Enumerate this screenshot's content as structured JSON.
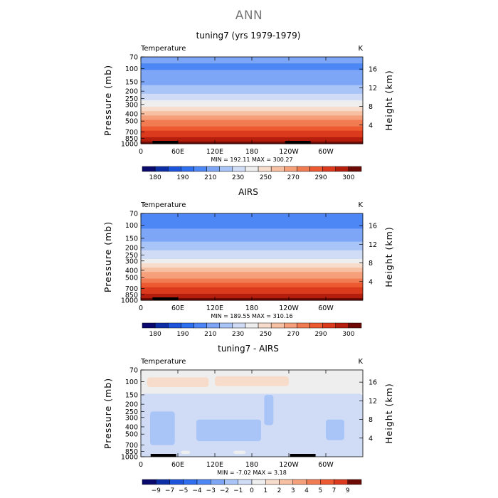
{
  "title": "ANN",
  "chart_data": [
    {
      "type": "heatmap",
      "title": "tuning7 (yrs 1979-1979)",
      "variable": "Temperature",
      "units": "K",
      "ylabel": "Pressure (mb)",
      "ylabel_right": "Height (km)",
      "xticks": [
        "0",
        "60E",
        "120E",
        "180",
        "120W",
        "60W"
      ],
      "yticks": [
        "70",
        "100",
        "150",
        "200",
        "250",
        "300",
        "400",
        "500",
        "700",
        "850",
        "1000"
      ],
      "yticks_right": [
        "16",
        "12",
        "8",
        "4"
      ],
      "stats": "MIN = 192.11   MAX = 300.27",
      "colorbar_labels": [
        "180",
        "190",
        "210",
        "230",
        "250",
        "270",
        "290",
        "300"
      ],
      "colorbar_colors": [
        "#0a0a6e",
        "#0c2fa8",
        "#1c54dc",
        "#2e6ff0",
        "#4d86f5",
        "#7ea6f7",
        "#a9c4f7",
        "#d0dcf5",
        "#eeeeee",
        "#f7dccc",
        "#f7c0a2",
        "#f5a07a",
        "#f27c52",
        "#ed5a32",
        "#dc3a1c",
        "#b51e0c",
        "#6e0a05"
      ],
      "colorbar_start": 170,
      "colorbar_step": 10,
      "profile_K": [
        [
          70,
          207
        ],
        [
          100,
          205
        ],
        [
          150,
          212
        ],
        [
          200,
          219
        ],
        [
          250,
          227
        ],
        [
          300,
          235
        ],
        [
          400,
          251
        ],
        [
          500,
          263
        ],
        [
          700,
          280
        ],
        [
          850,
          289
        ],
        [
          1000,
          299
        ]
      ],
      "land": [
        {
          "lon": 35,
          "pres": 920,
          "height": 12
        },
        {
          "lon": 250,
          "pres": 960,
          "height": 6
        }
      ]
    },
    {
      "type": "heatmap",
      "title": "AIRS",
      "variable": "Temperature",
      "units": "K",
      "ylabel": "Pressure (mb)",
      "ylabel_right": "Height (km)",
      "xticks": [
        "0",
        "60E",
        "120E",
        "180",
        "120W",
        "60W"
      ],
      "yticks": [
        "70",
        "100",
        "150",
        "200",
        "250",
        "300",
        "400",
        "500",
        "700",
        "850",
        "1000"
      ],
      "yticks_right": [
        "16",
        "12",
        "8",
        "4"
      ],
      "stats": "MIN = 189.55   MAX = 310.16",
      "colorbar_labels": [
        "180",
        "190",
        "210",
        "230",
        "250",
        "270",
        "290",
        "300"
      ],
      "colorbar_colors": [
        "#0a0a6e",
        "#0c2fa8",
        "#1c54dc",
        "#2e6ff0",
        "#4d86f5",
        "#7ea6f7",
        "#a9c4f7",
        "#d0dcf5",
        "#eeeeee",
        "#f7dccc",
        "#f7c0a2",
        "#f5a07a",
        "#f27c52",
        "#ed5a32",
        "#dc3a1c",
        "#b51e0c",
        "#6e0a05"
      ],
      "colorbar_start": 170,
      "colorbar_step": 10,
      "profile_K": [
        [
          70,
          206
        ],
        [
          100,
          204
        ],
        [
          150,
          211
        ],
        [
          200,
          218
        ],
        [
          250,
          226
        ],
        [
          300,
          234
        ],
        [
          400,
          250
        ],
        [
          500,
          262
        ],
        [
          700,
          279
        ],
        [
          850,
          289
        ],
        [
          1000,
          300
        ]
      ],
      "land": [
        {
          "lon": 35,
          "pres": 950,
          "height": 6
        }
      ]
    },
    {
      "type": "heatmap",
      "title": "tuning7 - AIRS",
      "variable": "Temperature",
      "units": "K",
      "ylabel": "Pressure (mb)",
      "ylabel_right": "Height (km)",
      "xticks": [
        "0",
        "60E",
        "120E",
        "180",
        "120W",
        "60W"
      ],
      "yticks": [
        "70",
        "100",
        "150",
        "200",
        "250",
        "300",
        "400",
        "500",
        "700",
        "850",
        "1000"
      ],
      "yticks_right": [
        "16",
        "12",
        "8",
        "4"
      ],
      "stats": "MIN =  -7.02   MAX =   3.18",
      "colorbar_labels": [
        "−9",
        "−7",
        "−5",
        "−4",
        "−3",
        "−2",
        "−1",
        "0",
        "1",
        "2",
        "3",
        "4",
        "5",
        "7",
        "9"
      ],
      "colorbar_colors": [
        "#0a0a6e",
        "#0c2fa8",
        "#1c54dc",
        "#2e6ff0",
        "#4d86f5",
        "#7ea6f7",
        "#a9c4f7",
        "#d0dcf5",
        "#eeeeee",
        "#f7dccc",
        "#f7c0a2",
        "#f5a07a",
        "#f27c52",
        "#ed5a32",
        "#dc3a1c",
        "#6e0a05"
      ],
      "diff_regions": [
        {
          "lon0": 0,
          "lon1": 360,
          "p0": 70,
          "p1": 145,
          "value": 0.5
        },
        {
          "lon0": 10,
          "lon1": 110,
          "p0": 88,
          "p1": 118,
          "value": 1.5
        },
        {
          "lon0": 120,
          "lon1": 240,
          "p0": 85,
          "p1": 115,
          "value": 1.5
        },
        {
          "lon0": 0,
          "lon1": 360,
          "p0": 145,
          "p1": 1000,
          "value": -0.5
        },
        {
          "lon0": 15,
          "lon1": 55,
          "p0": 250,
          "p1": 700,
          "value": -1.5
        },
        {
          "lon0": 90,
          "lon1": 195,
          "p0": 320,
          "p1": 620,
          "value": -1.5
        },
        {
          "lon0": 200,
          "lon1": 215,
          "p0": 150,
          "p1": 380,
          "value": -1.5
        },
        {
          "lon0": 300,
          "lon1": 330,
          "p0": 320,
          "p1": 600,
          "value": -1.5
        },
        {
          "lon0": 65,
          "lon1": 80,
          "p0": 830,
          "p1": 920,
          "value": 0.5
        },
        {
          "lon0": 150,
          "lon1": 170,
          "p0": 830,
          "p1": 920,
          "value": 0.5
        }
      ],
      "land": [
        {
          "lon": 32,
          "pres": 920,
          "height": 10
        },
        {
          "lon": 258,
          "pres": 960,
          "height": 5
        }
      ]
    }
  ]
}
